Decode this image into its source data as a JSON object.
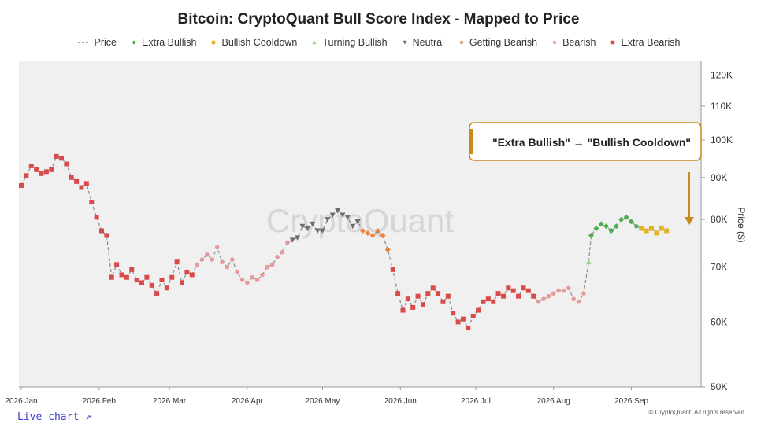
{
  "legend": [
    {
      "key": "price",
      "label": "Price",
      "color": "#888888"
    },
    {
      "key": "extra_bullish",
      "label": "Extra Bullish",
      "color": "#4cae4c"
    },
    {
      "key": "bullish_cooldown",
      "label": "Bullish Cooldown",
      "color": "#e3b42a"
    },
    {
      "key": "turning_bullish",
      "label": "Turning Bullish",
      "color": "#98d98a"
    },
    {
      "key": "neutral",
      "label": "Neutral",
      "color": "#6e6e6e"
    },
    {
      "key": "getting_bearish",
      "label": "Getting Bearish",
      "color": "#e8853c"
    },
    {
      "key": "bearish",
      "label": "Bearish",
      "color": "#e79a9a"
    },
    {
      "key": "extra_bearish",
      "label": "Extra Bearish",
      "color": "#d94b4b"
    }
  ],
  "annotation": {
    "text": "\"Extra Bullish\" → \"Bullish Cooldown\"",
    "color": "#c88a1a"
  },
  "footer": {
    "live_chart": "Live chart ↗",
    "copyright": "© CryptoQuant. All rights reserved"
  },
  "watermark": "CryptoQuant",
  "chart_data": {
    "type": "line",
    "title": "Bitcoin: CryptoQuant Bull Score Index - Mapped to Price",
    "ylabel": "Price ($)",
    "y_scale": "log",
    "ylim": [
      50000,
      125000
    ],
    "y_ticks": [
      50000,
      60000,
      70000,
      80000,
      90000,
      100000,
      110000,
      120000
    ],
    "y_tick_labels": [
      "50K",
      "60K",
      "70K",
      "80K",
      "90K",
      "100K",
      "110K",
      "120K"
    ],
    "x_range": [
      "2026-01-01",
      "2026-09-25"
    ],
    "x_ticks": [
      "2026-01-01",
      "2026-02-01",
      "2026-03-01",
      "2026-04-01",
      "2026-05-01",
      "2026-06-01",
      "2026-07-01",
      "2026-08-01",
      "2026-09-01"
    ],
    "x_tick_labels": [
      "2026 Jan",
      "2026 Feb",
      "2026 Mar",
      "2026 Apr",
      "2026 May",
      "2026 Jun",
      "2026 Jul",
      "2026 Aug",
      "2026 Sep"
    ],
    "grid": false,
    "legend_position": "top",
    "segments": [
      {
        "series": "extra_bearish",
        "points": [
          [
            "2026-01-01",
            88000
          ],
          [
            "2026-01-03",
            90500
          ],
          [
            "2026-01-05",
            93000
          ],
          [
            "2026-01-07",
            92000
          ],
          [
            "2026-01-09",
            91000
          ],
          [
            "2026-01-11",
            91500
          ],
          [
            "2026-01-13",
            92000
          ],
          [
            "2026-01-15",
            95500
          ],
          [
            "2026-01-17",
            95000
          ],
          [
            "2026-01-19",
            93500
          ],
          [
            "2026-01-21",
            90000
          ],
          [
            "2026-01-23",
            89000
          ],
          [
            "2026-01-25",
            87500
          ],
          [
            "2026-01-27",
            88500
          ],
          [
            "2026-01-29",
            84000
          ],
          [
            "2026-01-31",
            80500
          ],
          [
            "2026-02-02",
            77500
          ],
          [
            "2026-02-04",
            76500
          ],
          [
            "2026-02-06",
            68000
          ],
          [
            "2026-02-08",
            70500
          ],
          [
            "2026-02-10",
            68500
          ],
          [
            "2026-02-12",
            68000
          ],
          [
            "2026-02-14",
            69500
          ],
          [
            "2026-02-16",
            67500
          ],
          [
            "2026-02-18",
            67000
          ],
          [
            "2026-02-20",
            68000
          ],
          [
            "2026-02-22",
            66500
          ],
          [
            "2026-02-24",
            65000
          ],
          [
            "2026-02-26",
            67500
          ],
          [
            "2026-02-28",
            66000
          ],
          [
            "2026-03-02",
            68000
          ],
          [
            "2026-03-04",
            71000
          ],
          [
            "2026-03-06",
            67000
          ],
          [
            "2026-03-08",
            69000
          ],
          [
            "2026-03-10",
            68500
          ]
        ]
      },
      {
        "series": "bearish",
        "points": [
          [
            "2026-03-12",
            70500
          ],
          [
            "2026-03-14",
            71500
          ],
          [
            "2026-03-16",
            72500
          ],
          [
            "2026-03-18",
            71500
          ],
          [
            "2026-03-20",
            74000
          ],
          [
            "2026-03-22",
            71000
          ],
          [
            "2026-03-24",
            70000
          ],
          [
            "2026-03-26",
            71500
          ],
          [
            "2026-03-28",
            69000
          ],
          [
            "2026-03-30",
            67500
          ],
          [
            "2026-04-01",
            67000
          ],
          [
            "2026-04-03",
            68000
          ],
          [
            "2026-04-05",
            67500
          ],
          [
            "2026-04-07",
            68500
          ],
          [
            "2026-04-09",
            70000
          ],
          [
            "2026-04-11",
            70500
          ],
          [
            "2026-04-13",
            72000
          ],
          [
            "2026-04-15",
            73000
          ],
          [
            "2026-04-17",
            75000
          ]
        ]
      },
      {
        "series": "neutral",
        "points": [
          [
            "2026-04-19",
            75500
          ],
          [
            "2026-04-21",
            76000
          ],
          [
            "2026-04-23",
            78500
          ],
          [
            "2026-04-25",
            78000
          ],
          [
            "2026-04-27",
            79000
          ],
          [
            "2026-04-29",
            77500
          ],
          [
            "2026-05-01",
            77500
          ],
          [
            "2026-05-03",
            80000
          ],
          [
            "2026-05-05",
            81000
          ],
          [
            "2026-05-07",
            82000
          ],
          [
            "2026-05-09",
            81000
          ],
          [
            "2026-05-11",
            80500
          ],
          [
            "2026-05-13",
            78500
          ],
          [
            "2026-05-15",
            79500
          ]
        ]
      },
      {
        "series": "getting_bearish",
        "points": [
          [
            "2026-05-17",
            77500
          ],
          [
            "2026-05-19",
            77000
          ],
          [
            "2026-05-21",
            76500
          ],
          [
            "2026-05-23",
            77500
          ],
          [
            "2026-05-25",
            76500
          ],
          [
            "2026-05-27",
            73500
          ]
        ]
      },
      {
        "series": "extra_bearish",
        "points": [
          [
            "2026-05-29",
            69500
          ],
          [
            "2026-05-31",
            65000
          ],
          [
            "2026-06-02",
            62000
          ],
          [
            "2026-06-04",
            64000
          ],
          [
            "2026-06-06",
            62500
          ],
          [
            "2026-06-08",
            64500
          ],
          [
            "2026-06-10",
            63000
          ],
          [
            "2026-06-12",
            65000
          ],
          [
            "2026-06-14",
            66000
          ],
          [
            "2026-06-16",
            65000
          ],
          [
            "2026-06-18",
            63500
          ],
          [
            "2026-06-20",
            64500
          ],
          [
            "2026-06-22",
            61500
          ],
          [
            "2026-06-24",
            60000
          ],
          [
            "2026-06-26",
            60500
          ],
          [
            "2026-06-28",
            59000
          ],
          [
            "2026-06-30",
            61000
          ],
          [
            "2026-07-02",
            62000
          ],
          [
            "2026-07-04",
            63500
          ],
          [
            "2026-07-06",
            64000
          ],
          [
            "2026-07-08",
            63500
          ],
          [
            "2026-07-10",
            65000
          ],
          [
            "2026-07-12",
            64500
          ],
          [
            "2026-07-14",
            66000
          ],
          [
            "2026-07-16",
            65500
          ],
          [
            "2026-07-18",
            64500
          ],
          [
            "2026-07-20",
            66000
          ],
          [
            "2026-07-22",
            65500
          ],
          [
            "2026-07-24",
            64500
          ]
        ]
      },
      {
        "series": "bearish",
        "points": [
          [
            "2026-07-26",
            63500
          ],
          [
            "2026-07-28",
            64000
          ],
          [
            "2026-07-30",
            64500
          ],
          [
            "2026-08-01",
            65000
          ],
          [
            "2026-08-03",
            65500
          ],
          [
            "2026-08-05",
            65500
          ],
          [
            "2026-08-07",
            66000
          ],
          [
            "2026-08-09",
            64000
          ],
          [
            "2026-08-11",
            63500
          ],
          [
            "2026-08-13",
            65000
          ]
        ]
      },
      {
        "series": "turning_bullish",
        "points": [
          [
            "2026-08-15",
            71000
          ]
        ]
      },
      {
        "series": "extra_bullish",
        "points": [
          [
            "2026-08-16",
            76500
          ],
          [
            "2026-08-18",
            78000
          ],
          [
            "2026-08-20",
            79000
          ],
          [
            "2026-08-22",
            78500
          ],
          [
            "2026-08-24",
            77500
          ],
          [
            "2026-08-26",
            78500
          ],
          [
            "2026-08-28",
            80000
          ],
          [
            "2026-08-30",
            80500
          ],
          [
            "2026-09-01",
            79500
          ],
          [
            "2026-09-03",
            78500
          ]
        ]
      },
      {
        "series": "bullish_cooldown",
        "points": [
          [
            "2026-09-05",
            78000
          ],
          [
            "2026-09-07",
            77500
          ],
          [
            "2026-09-09",
            78000
          ],
          [
            "2026-09-11",
            77000
          ],
          [
            "2026-09-13",
            78000
          ],
          [
            "2026-09-15",
            77500
          ]
        ]
      }
    ]
  }
}
